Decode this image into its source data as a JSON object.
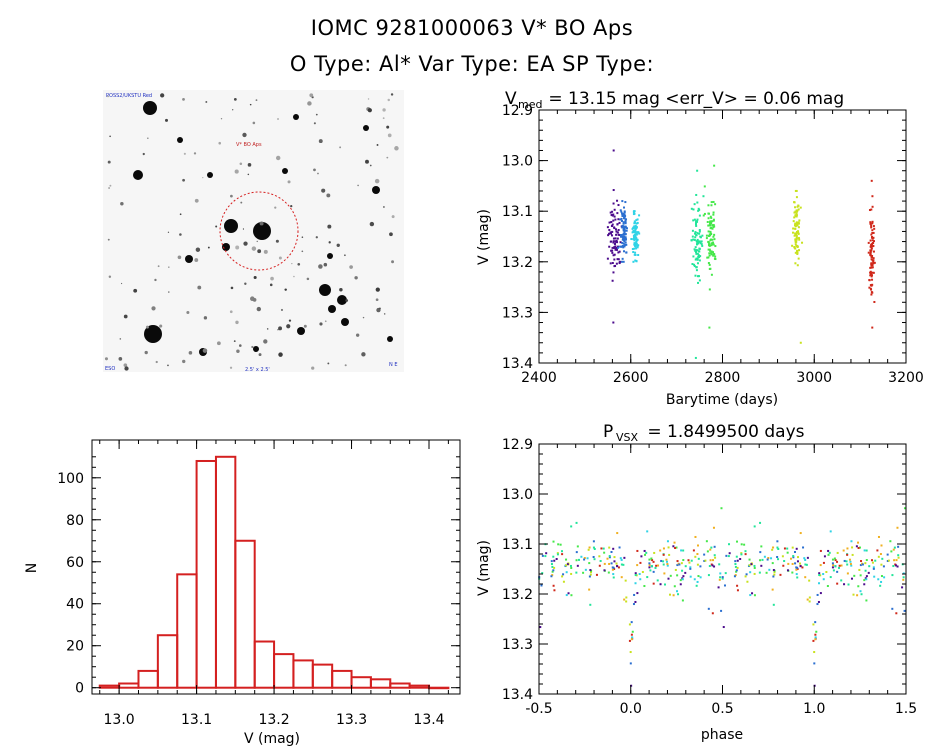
{
  "header": {
    "title_line1": "IOMC 9281000063    V* BO Aps",
    "title_line2": "O Type: Al*   Var Type: EA   SP Type:"
  },
  "finder": {
    "label_top_left": "POSS2/UKSTU Red",
    "label_target": "V* BO Aps",
    "label_bottom_left": "ESO",
    "label_bottom_center": "2.5' x 2.5'",
    "label_bottom_right": "N E"
  },
  "lightcurve": {
    "title_main": "V",
    "title_sub": "med",
    "title_rest": " = 13.15 mag <err_V> = 0.06 mag",
    "xlabel": "Barytime (days)",
    "ylabel": "V (mag)"
  },
  "phase": {
    "title_main": "P",
    "title_sub": "VSX",
    "title_rest": " = 1.8499500 days",
    "xlabel": "phase",
    "ylabel": "V (mag)"
  },
  "histogram": {
    "xlabel": "V (mag)",
    "ylabel": "N"
  },
  "chart_data": [
    {
      "name": "light-curve",
      "type": "scatter",
      "title": "Vmed = 13.15 mag <err_V> = 0.06 mag",
      "xlabel": "Barytime (days)",
      "ylabel": "V (mag)",
      "xlim": [
        2400,
        3200
      ],
      "ylim": [
        13.4,
        12.9
      ],
      "y_inverted": true,
      "xticks": [
        "2400",
        "2600",
        "2800",
        "3000",
        "3200"
      ],
      "yticks": [
        "12.9",
        "13.0",
        "13.1",
        "13.2",
        "13.3",
        "13.4"
      ],
      "series": [
        {
          "name": "season-1",
          "color": "#4b0b8c",
          "x_center": 2565,
          "x_spread": 12,
          "y_center": 13.15,
          "y_spread": 0.05,
          "y_min": 12.98,
          "y_max": 13.32
        },
        {
          "name": "season-1b",
          "color": "#2b6fd0",
          "x_center": 2585,
          "x_spread": 6,
          "y_center": 13.14,
          "y_spread": 0.04,
          "y_min": 13.08,
          "y_max": 13.2
        },
        {
          "name": "season-1c",
          "color": "#2fd3e6",
          "x_center": 2610,
          "x_spread": 5,
          "y_center": 13.15,
          "y_spread": 0.03,
          "y_min": 13.1,
          "y_max": 13.2
        },
        {
          "name": "season-2",
          "color": "#22e59a",
          "x_center": 2745,
          "x_spread": 10,
          "y_center": 13.16,
          "y_spread": 0.05,
          "y_min": 13.02,
          "y_max": 13.39
        },
        {
          "name": "season-2b",
          "color": "#45e84a",
          "x_center": 2775,
          "x_spread": 10,
          "y_center": 13.14,
          "y_spread": 0.05,
          "y_min": 13.01,
          "y_max": 13.33
        },
        {
          "name": "season-3",
          "color": "#c8e21e",
          "x_center": 2962,
          "x_spread": 6,
          "y_center": 13.14,
          "y_spread": 0.04,
          "y_min": 13.06,
          "y_max": 13.36
        },
        {
          "name": "season-4",
          "color": "#d0281a",
          "x_center": 3125,
          "x_spread": 5,
          "y_center": 13.18,
          "y_spread": 0.07,
          "y_min": 13.04,
          "y_max": 13.33
        }
      ]
    },
    {
      "name": "histogram",
      "type": "bar",
      "xlabel": "V (mag)",
      "ylabel": "N",
      "xlim": [
        12.965,
        13.44
      ],
      "ylim": [
        -3,
        118
      ],
      "bin_width": 0.025,
      "bin_starts": [
        12.975,
        13.0,
        13.025,
        13.05,
        13.075,
        13.1,
        13.125,
        13.15,
        13.175,
        13.2,
        13.225,
        13.25,
        13.275,
        13.3,
        13.325,
        13.35,
        13.375,
        13.4
      ],
      "values": [
        1,
        2,
        8,
        25,
        54,
        108,
        110,
        70,
        22,
        16,
        13,
        11,
        8,
        5,
        4,
        2,
        1,
        0
      ],
      "xticks": [
        "13.0",
        "13.1",
        "13.2",
        "13.3",
        "13.4"
      ],
      "yticks": [
        "0",
        "20",
        "40",
        "60",
        "80",
        "100"
      ],
      "color": "#d42020"
    },
    {
      "name": "phase-folded",
      "type": "scatter",
      "title": "PVSX = 1.8499500 days",
      "xlabel": "phase",
      "ylabel": "V (mag)",
      "xlim": [
        -0.5,
        1.5
      ],
      "ylim": [
        13.4,
        12.9
      ],
      "y_inverted": true,
      "period_days": 1.84995,
      "xticks": [
        "-0.5",
        "0.0",
        "0.5",
        "1.0",
        "1.5"
      ],
      "yticks": [
        "12.9",
        "13.0",
        "13.1",
        "13.2",
        "13.3",
        "13.4"
      ],
      "primary_min_phase": 0.0,
      "primary_min_depth_mag": 13.38,
      "baseline_mag": 13.14,
      "colors": [
        "#4b0b8c",
        "#2b6fd0",
        "#2fd3e6",
        "#22e59a",
        "#45e84a",
        "#c8e21e",
        "#f0b020",
        "#d0281a"
      ]
    }
  ]
}
